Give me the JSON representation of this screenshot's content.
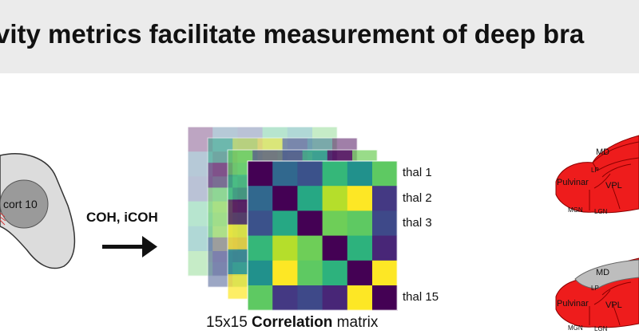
{
  "title": "vity metrics facilitate measurement of deep bra",
  "brain_region_label": "cort 10",
  "method_label": "COH, iCOH",
  "matrix": {
    "row_labels": [
      "thal 1",
      "thal 2",
      "thal 3",
      "thal 15"
    ],
    "caption_prefix": "15x15 ",
    "caption_bold": "Correlation",
    "caption_suffix": " matrix",
    "cells": [
      [
        "#440154",
        "#31688e",
        "#3b528b",
        "#35b779",
        "#21918c",
        "#5ec962"
      ],
      [
        "#31688e",
        "#440154",
        "#26a884",
        "#b5de2b",
        "#fde725",
        "#443983"
      ],
      [
        "#3b528b",
        "#26a884",
        "#440154",
        "#6ece58",
        "#5ec962",
        "#3e4989"
      ],
      [
        "#35b779",
        "#b5de2b",
        "#6ece58",
        "#440154",
        "#2db27d",
        "#482677"
      ],
      [
        "#21918c",
        "#fde725",
        "#5ec962",
        "#2db27d",
        "#440154",
        "#fde725"
      ],
      [
        "#5ec962",
        "#443983",
        "#3e4989",
        "#482677",
        "#fde725",
        "#440154"
      ]
    ]
  },
  "thalamus_labels": {
    "top": [
      "MD",
      "LP",
      "Pulvinar",
      "VPL",
      "MGN",
      "LGN"
    ],
    "bottom": [
      "MD",
      "LP",
      "Pulvinar",
      "VPL",
      "MGN",
      "LGN"
    ]
  },
  "colors": {
    "thalamus_red": "#ee1c1c",
    "thalamus_gray": "#bdbdbd",
    "banner_bg": "#ebebeb"
  }
}
